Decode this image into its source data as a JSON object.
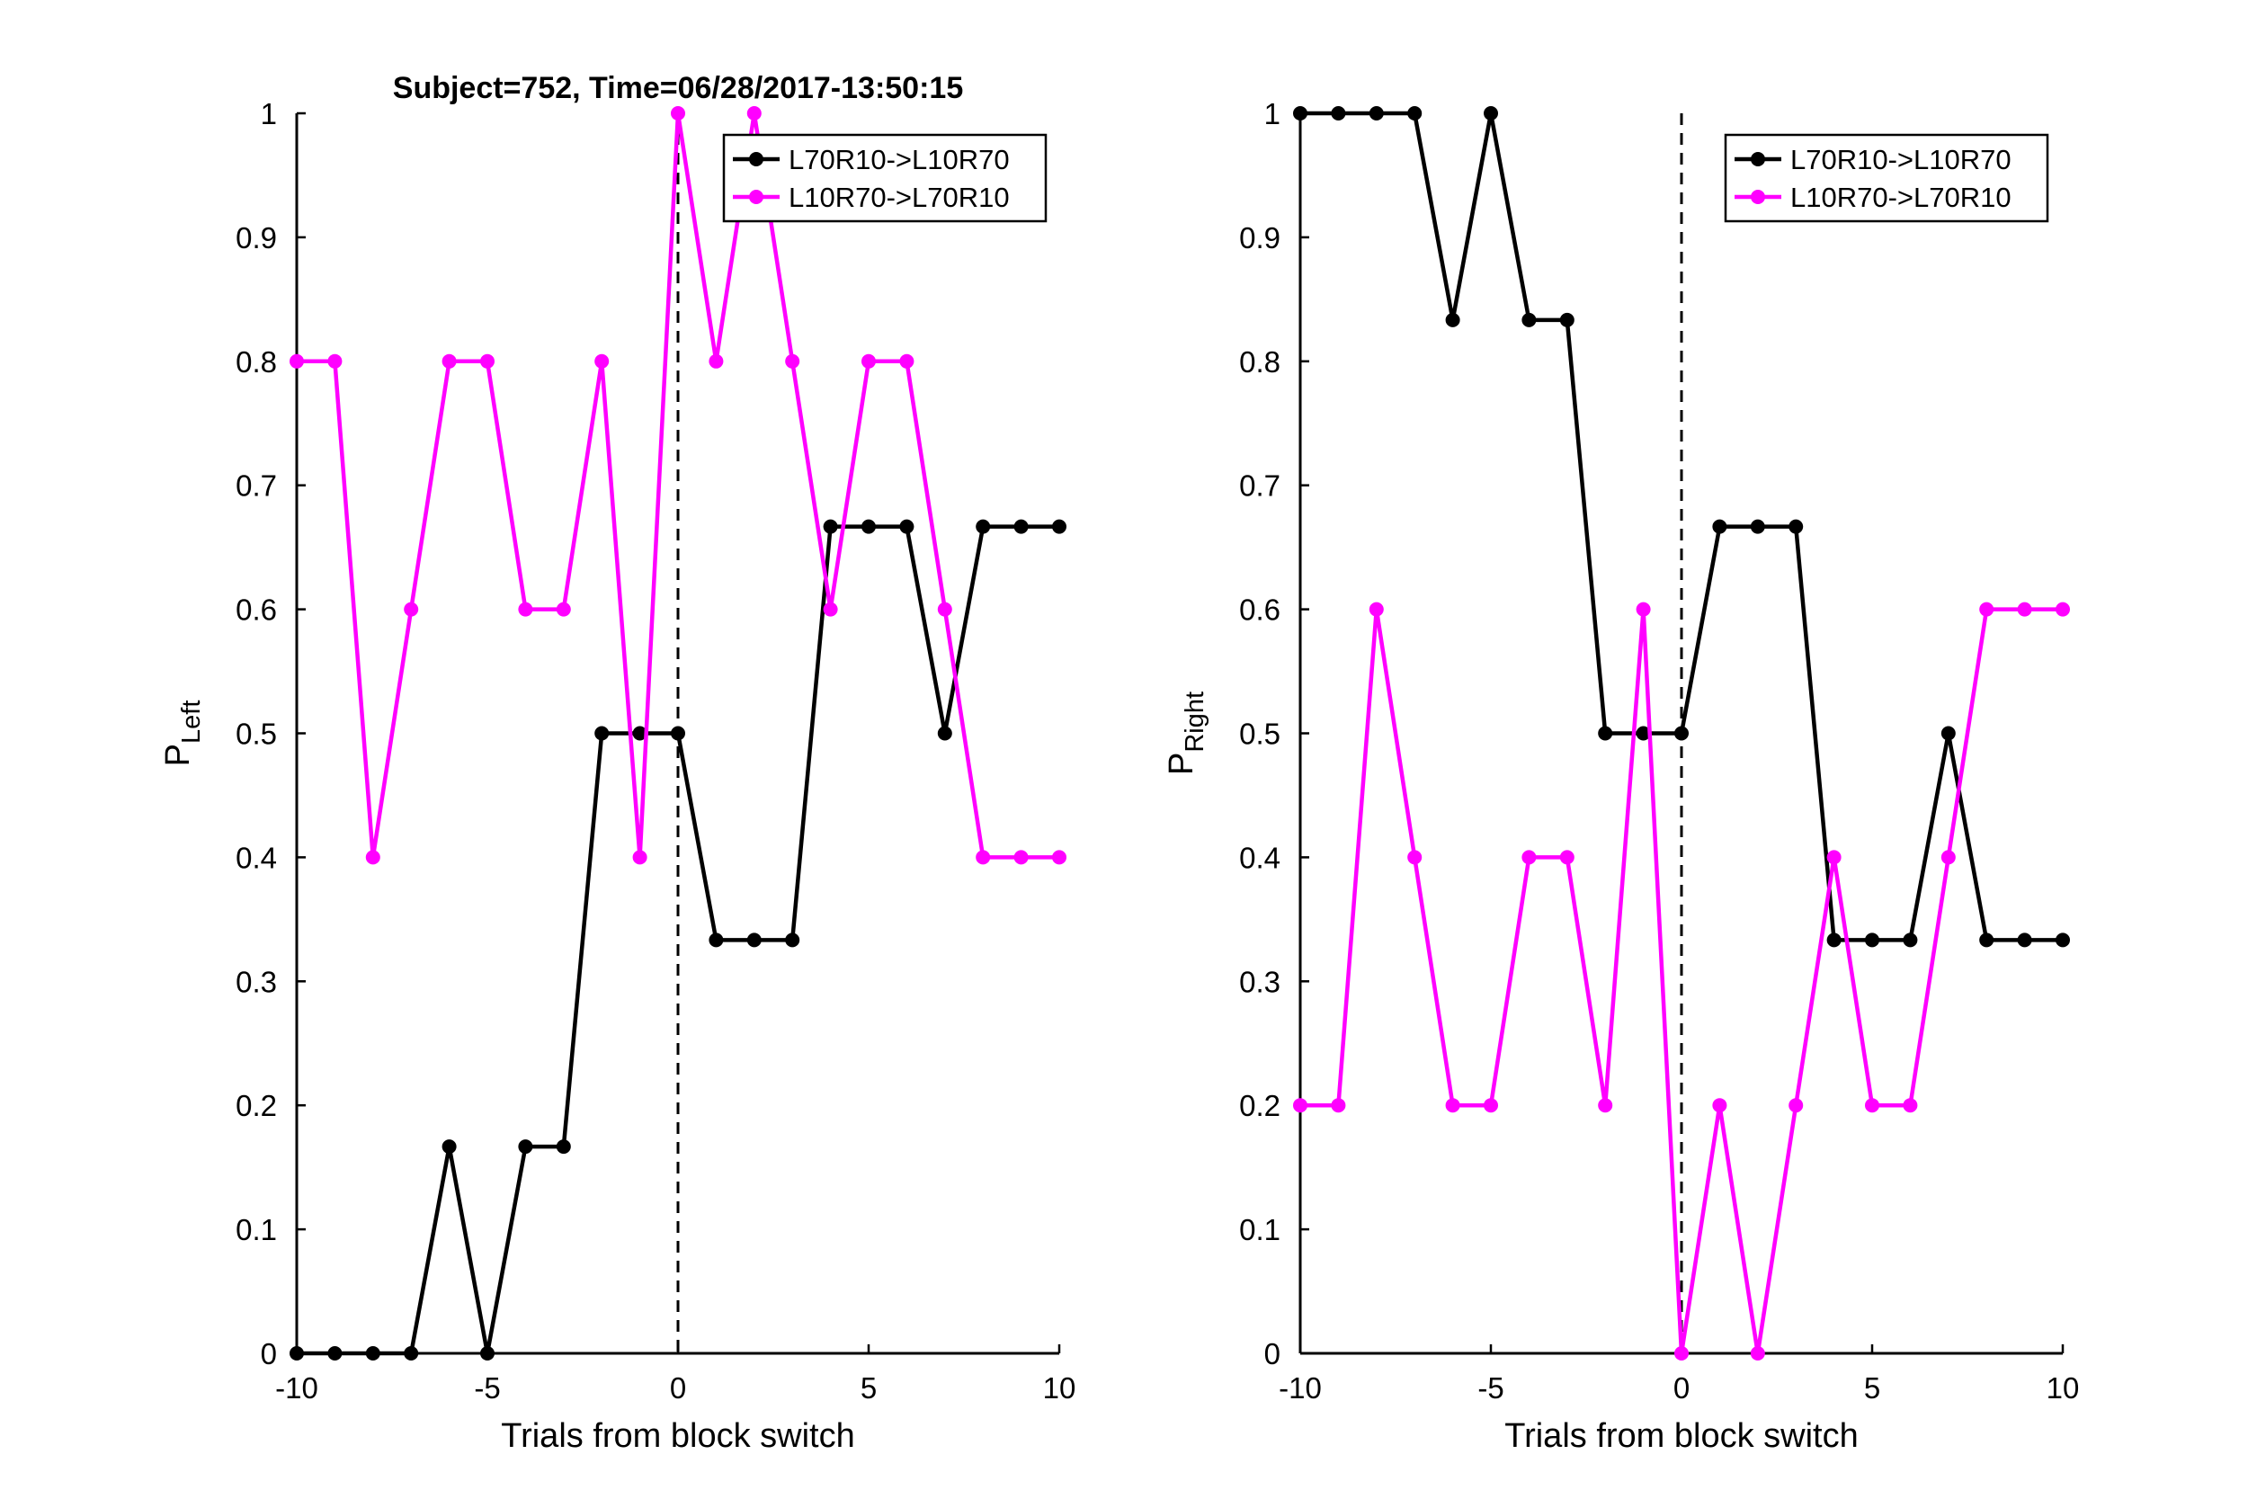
{
  "figure_title": "Subject=752, Time=06/28/2017-13:50:15",
  "colors": {
    "black_series": "#000000",
    "magenta_series": "#ff00ff",
    "axes": "#000000",
    "background": "#ffffff"
  },
  "chart_data": [
    {
      "type": "line",
      "title": "Subject=752, Time=06/28/2017-13:50:15",
      "xlabel": "Trials from block switch",
      "ylabel_main": "P",
      "ylabel_sub": "Left",
      "xlim": [
        -10,
        10
      ],
      "ylim": [
        0,
        1
      ],
      "xticks": [
        -10,
        -5,
        0,
        5,
        10
      ],
      "yticks": [
        0,
        0.1,
        0.2,
        0.3,
        0.4,
        0.5,
        0.6,
        0.7,
        0.8,
        0.9,
        1
      ],
      "vline_x": 0,
      "legend_position": "top-right",
      "x": [
        -10,
        -9,
        -8,
        -7,
        -6,
        -5,
        -4,
        -3,
        -2,
        -1,
        0,
        1,
        2,
        3,
        4,
        5,
        6,
        7,
        8,
        9,
        10
      ],
      "series": [
        {
          "name": "L70R10->L10R70",
          "color": "#000000",
          "values": [
            0,
            0,
            0,
            0,
            0.1667,
            0,
            0.1667,
            0.1667,
            0.5,
            0.5,
            0.5,
            0.3333,
            0.3333,
            0.3333,
            0.6667,
            0.6667,
            0.6667,
            0.5,
            0.6667,
            0.6667,
            0.6667
          ]
        },
        {
          "name": "L10R70->L70R10",
          "color": "#ff00ff",
          "values": [
            0.8,
            0.8,
            0.4,
            0.6,
            0.8,
            0.8,
            0.6,
            0.6,
            0.8,
            0.4,
            1,
            0.8,
            1,
            0.8,
            0.6,
            0.8,
            0.8,
            0.6,
            0.4,
            0.4,
            0.4
          ]
        }
      ]
    },
    {
      "type": "line",
      "title": "",
      "xlabel": "Trials from block switch",
      "ylabel_main": "P",
      "ylabel_sub": "Right",
      "xlim": [
        -10,
        10
      ],
      "ylim": [
        0,
        1
      ],
      "xticks": [
        -10,
        -5,
        0,
        5,
        10
      ],
      "yticks": [
        0,
        0.1,
        0.2,
        0.3,
        0.4,
        0.5,
        0.6,
        0.7,
        0.8,
        0.9,
        1
      ],
      "vline_x": 0,
      "legend_position": "top-right",
      "x": [
        -10,
        -9,
        -8,
        -7,
        -6,
        -5,
        -4,
        -3,
        -2,
        -1,
        0,
        1,
        2,
        3,
        4,
        5,
        6,
        7,
        8,
        9,
        10
      ],
      "series": [
        {
          "name": "L70R10->L10R70",
          "color": "#000000",
          "values": [
            1,
            1,
            1,
            1,
            0.8333,
            1,
            0.8333,
            0.8333,
            0.5,
            0.5,
            0.5,
            0.6667,
            0.6667,
            0.6667,
            0.3333,
            0.3333,
            0.3333,
            0.5,
            0.3333,
            0.3333,
            0.3333
          ]
        },
        {
          "name": "L10R70->L70R10",
          "color": "#ff00ff",
          "values": [
            0.2,
            0.2,
            0.6,
            0.4,
            0.2,
            0.2,
            0.4,
            0.4,
            0.2,
            0.6,
            0,
            0.2,
            0,
            0.2,
            0.4,
            0.2,
            0.2,
            0.4,
            0.6,
            0.6,
            0.6
          ]
        }
      ]
    }
  ]
}
